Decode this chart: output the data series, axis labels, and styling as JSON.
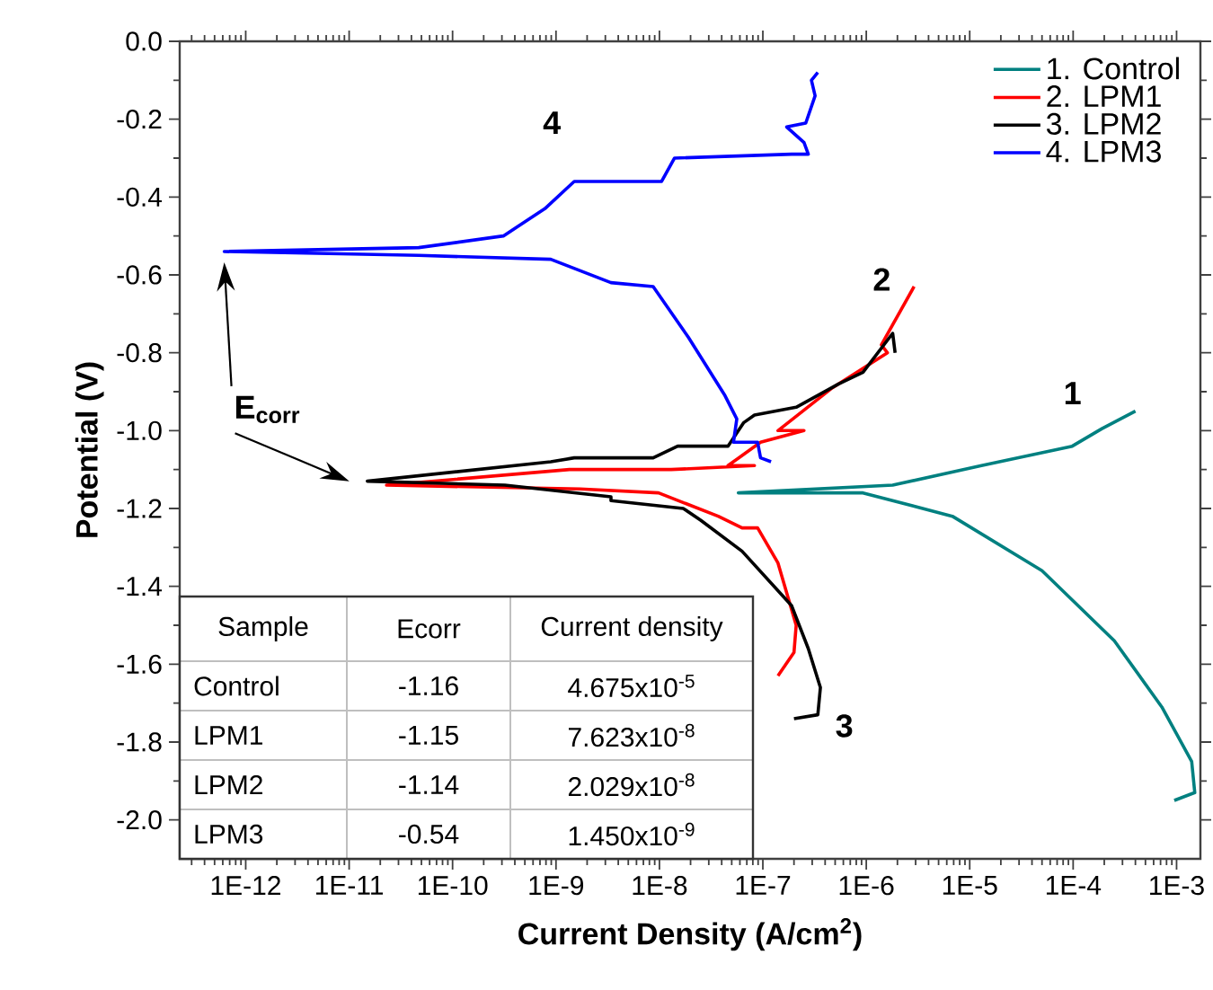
{
  "chart_data": {
    "type": "line",
    "xlabel": "Current Density (A/cm$^{2}$)",
    "ylabel": "Potential (V)",
    "log": "x",
    "legend": "top right",
    "xlim": [
      2.3e-13,
      0.0017
    ],
    "ylim": [
      -2.1,
      0
    ],
    "xticks": [
      {
        "value": 1e-12,
        "label": "1E-12"
      },
      {
        "value": 1e-11,
        "label": "1E-11"
      },
      {
        "value": 1e-10,
        "label": "1E-10"
      },
      {
        "value": 1e-09,
        "label": "1E-9"
      },
      {
        "value": 1e-08,
        "label": "1E-8"
      },
      {
        "value": 1e-07,
        "label": "1E-7"
      },
      {
        "value": 1e-06,
        "label": "1E-6"
      },
      {
        "value": 1e-05,
        "label": "1E-5"
      },
      {
        "value": 0.0001,
        "label": "1E-4"
      },
      {
        "value": 0.001,
        "label": "1E-3"
      }
    ],
    "yticks": [
      {
        "value": -2,
        "label": "-2.0"
      },
      {
        "value": -1.8,
        "label": "-1.8"
      },
      {
        "value": -1.6,
        "label": "-1.6"
      },
      {
        "value": -1.4,
        "label": "-1.4"
      },
      {
        "value": -1.2,
        "label": "-1.2"
      },
      {
        "value": -1,
        "label": "-1.0"
      },
      {
        "value": -0.8,
        "label": "-0.8"
      },
      {
        "value": -0.6,
        "label": "-0.6"
      },
      {
        "value": -0.4,
        "label": "-0.4"
      },
      {
        "value": -0.2,
        "label": "-0.2"
      },
      {
        "value": 0,
        "label": "0.0"
      }
    ],
    "series": [
      {
        "name": "1. Control",
        "color": "#008080",
        "x": [
          0.0004,
          0.00019,
          9.8e-05,
          1.3e-05,
          1.8e-06,
          5.8e-08,
          9.3e-07,
          6.8e-06,
          5e-05,
          0.00025,
          0.00072,
          0.0014,
          0.0015,
          0.00095
        ],
        "values": [
          -0.95,
          -0.995,
          -1.04,
          -1.09,
          -1.14,
          -1.16,
          -1.16,
          -1.22,
          -1.36,
          -1.54,
          -1.71,
          -1.85,
          -1.93,
          -1.95
        ]
      },
      {
        "name": "2. LPM1",
        "color": "#ff0000",
        "x": [
          2.9e-06,
          1.4e-06,
          1.6e-06,
          4.7e-07,
          1.4e-07,
          2.5e-07,
          9.5e-08,
          4.6e-08,
          8.3e-08,
          1.3e-08,
          1.35e-09,
          2.3e-11,
          1.7e-09,
          9.8e-09,
          3.7e-08,
          6.3e-08,
          8.9e-08,
          1.4e-07,
          2.1e-07,
          2e-07,
          1.4e-07
        ],
        "values": [
          -0.63,
          -0.78,
          -0.8,
          -0.89,
          -1.0,
          -1.0,
          -1.03,
          -1.09,
          -1.09,
          -1.1,
          -1.1,
          -1.14,
          -1.15,
          -1.16,
          -1.22,
          -1.25,
          -1.25,
          -1.34,
          -1.5,
          -1.57,
          -1.63
        ]
      },
      {
        "name": "3.  LPM2",
        "color": "#000000",
        "x": [
          1.9e-06,
          1.8e-06,
          9.3e-07,
          5.4e-07,
          2.1e-07,
          8.3e-08,
          6.5e-08,
          4.6e-08,
          1.5e-08,
          8.7e-09,
          1.5e-09,
          8.9e-10,
          1.5e-11,
          3.2e-10,
          3.4e-09,
          3.4e-09,
          1.7e-08,
          2.5e-08,
          6.3e-08,
          1.9e-07,
          2.75e-07,
          3.6e-07,
          3.4e-07,
          2e-07
        ],
        "values": [
          -0.8,
          -0.75,
          -0.85,
          -0.88,
          -0.94,
          -0.96,
          -0.98,
          -1.04,
          -1.04,
          -1.07,
          -1.07,
          -1.08,
          -1.13,
          -1.14,
          -1.17,
          -1.18,
          -1.2,
          -1.23,
          -1.31,
          -1.45,
          -1.56,
          -1.66,
          -1.73,
          -1.74
        ]
      },
      {
        "name": "4. LPM3",
        "color": "#0000ff",
        "x": [
          3.4e-07,
          2.95e-07,
          3.2e-07,
          2.6e-07,
          1.7e-07,
          2.5e-07,
          2.75e-07,
          1.9e-07,
          1.4e-08,
          1.05e-08,
          1.5e-09,
          7.8e-10,
          3.1e-10,
          4.7e-11,
          6.2e-13,
          4.7e-11,
          8.9e-10,
          3.4e-09,
          8.7e-09,
          1.9e-08,
          4.3e-08,
          5.6e-08,
          5.2e-08,
          8.9e-08,
          9.5e-08,
          1.2e-07
        ],
        "values": [
          -0.08,
          -0.1,
          -0.14,
          -0.21,
          -0.22,
          -0.26,
          -0.29,
          -0.29,
          -0.3,
          -0.36,
          -0.36,
          -0.43,
          -0.5,
          -0.53,
          -0.54,
          -0.55,
          -0.56,
          -0.62,
          -0.63,
          -0.76,
          -0.91,
          -0.97,
          -1.03,
          -1.03,
          -1.07,
          -1.08
        ]
      }
    ],
    "annotations": [
      "E$_{corr}$",
      "1",
      "2",
      "3",
      "4",
      "Sample",
      "Ecorr",
      "Current density",
      "Control",
      "-1.16",
      "4.675x10$^{-5}$",
      "LPM1",
      "-1.15",
      "7.623x10$^{-8}$",
      "LPM2",
      "-1.14",
      "2.029x10$^{-8}$",
      "LPM3",
      "-0.54",
      "1.450x10$^{-9}$"
    ]
  }
}
